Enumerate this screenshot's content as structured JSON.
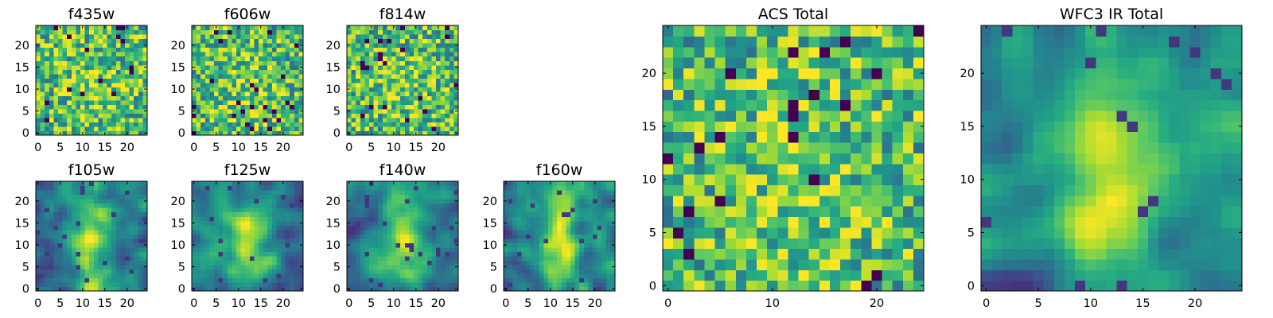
{
  "figure": {
    "background": "#ffffff"
  },
  "chart_data": [
    {
      "type": "heatmap",
      "title": "f435w",
      "xlim": [
        0,
        24
      ],
      "ylim": [
        0,
        24
      ],
      "xticks": [
        "0",
        "5",
        "10",
        "15",
        "20"
      ],
      "yticks": [
        "0",
        "5",
        "10",
        "15",
        "20"
      ],
      "grid_size": 25,
      "colormap": "viridis",
      "pattern": "noise",
      "seed": 11
    },
    {
      "type": "heatmap",
      "title": "f606w",
      "xlim": [
        0,
        24
      ],
      "ylim": [
        0,
        24
      ],
      "xticks": [
        "0",
        "5",
        "10",
        "15",
        "20"
      ],
      "yticks": [
        "0",
        "5",
        "10",
        "15",
        "20"
      ],
      "grid_size": 25,
      "colormap": "viridis",
      "pattern": "noise",
      "seed": 23
    },
    {
      "type": "heatmap",
      "title": "f814w",
      "xlim": [
        0,
        24
      ],
      "ylim": [
        0,
        24
      ],
      "xticks": [
        "0",
        "5",
        "10",
        "15",
        "20"
      ],
      "yticks": [
        "0",
        "5",
        "10",
        "15",
        "20"
      ],
      "grid_size": 25,
      "colormap": "viridis",
      "pattern": "noise",
      "seed": 37
    },
    {
      "type": "heatmap",
      "title": "f105w",
      "xlim": [
        0,
        24
      ],
      "ylim": [
        0,
        24
      ],
      "xticks": [
        "0",
        "5",
        "10",
        "15",
        "20"
      ],
      "yticks": [
        "0",
        "5",
        "10",
        "15",
        "20"
      ],
      "grid_size": 25,
      "colormap": "viridis",
      "pattern": "smooth",
      "seed": 41
    },
    {
      "type": "heatmap",
      "title": "f125w",
      "xlim": [
        0,
        24
      ],
      "ylim": [
        0,
        24
      ],
      "xticks": [
        "0",
        "5",
        "10",
        "15",
        "20"
      ],
      "yticks": [
        "0",
        "5",
        "10",
        "15",
        "20"
      ],
      "grid_size": 25,
      "colormap": "viridis",
      "pattern": "smooth",
      "seed": 53
    },
    {
      "type": "heatmap",
      "title": "f140w",
      "xlim": [
        0,
        24
      ],
      "ylim": [
        0,
        24
      ],
      "xticks": [
        "0",
        "5",
        "10",
        "15",
        "20"
      ],
      "yticks": [
        "0",
        "5",
        "10",
        "15",
        "20"
      ],
      "grid_size": 25,
      "colormap": "viridis",
      "pattern": "smooth",
      "seed": 67
    },
    {
      "type": "heatmap",
      "title": "f160w",
      "xlim": [
        0,
        24
      ],
      "ylim": [
        0,
        24
      ],
      "xticks": [
        "0",
        "5",
        "10",
        "15",
        "20"
      ],
      "yticks": [
        "0",
        "5",
        "10",
        "15",
        "20"
      ],
      "grid_size": 25,
      "colormap": "viridis",
      "pattern": "smooth",
      "seed": 79
    },
    {
      "type": "heatmap",
      "title": "ACS Total",
      "xlim": [
        0,
        24
      ],
      "ylim": [
        0,
        24
      ],
      "xticks": [
        "0",
        "10",
        "20"
      ],
      "yticks": [
        "0",
        "5",
        "10",
        "15",
        "20"
      ],
      "grid_size": 25,
      "colormap": "viridis",
      "pattern": "noise",
      "seed": 89
    },
    {
      "type": "heatmap",
      "title": "WFC3 IR Total",
      "xlim": [
        0,
        24
      ],
      "ylim": [
        0,
        24
      ],
      "xticks": [
        "0",
        "5",
        "10",
        "15",
        "20"
      ],
      "yticks": [
        "0",
        "5",
        "10",
        "15",
        "20"
      ],
      "grid_size": 25,
      "colormap": "viridis",
      "pattern": "smooth",
      "seed": 97
    }
  ]
}
